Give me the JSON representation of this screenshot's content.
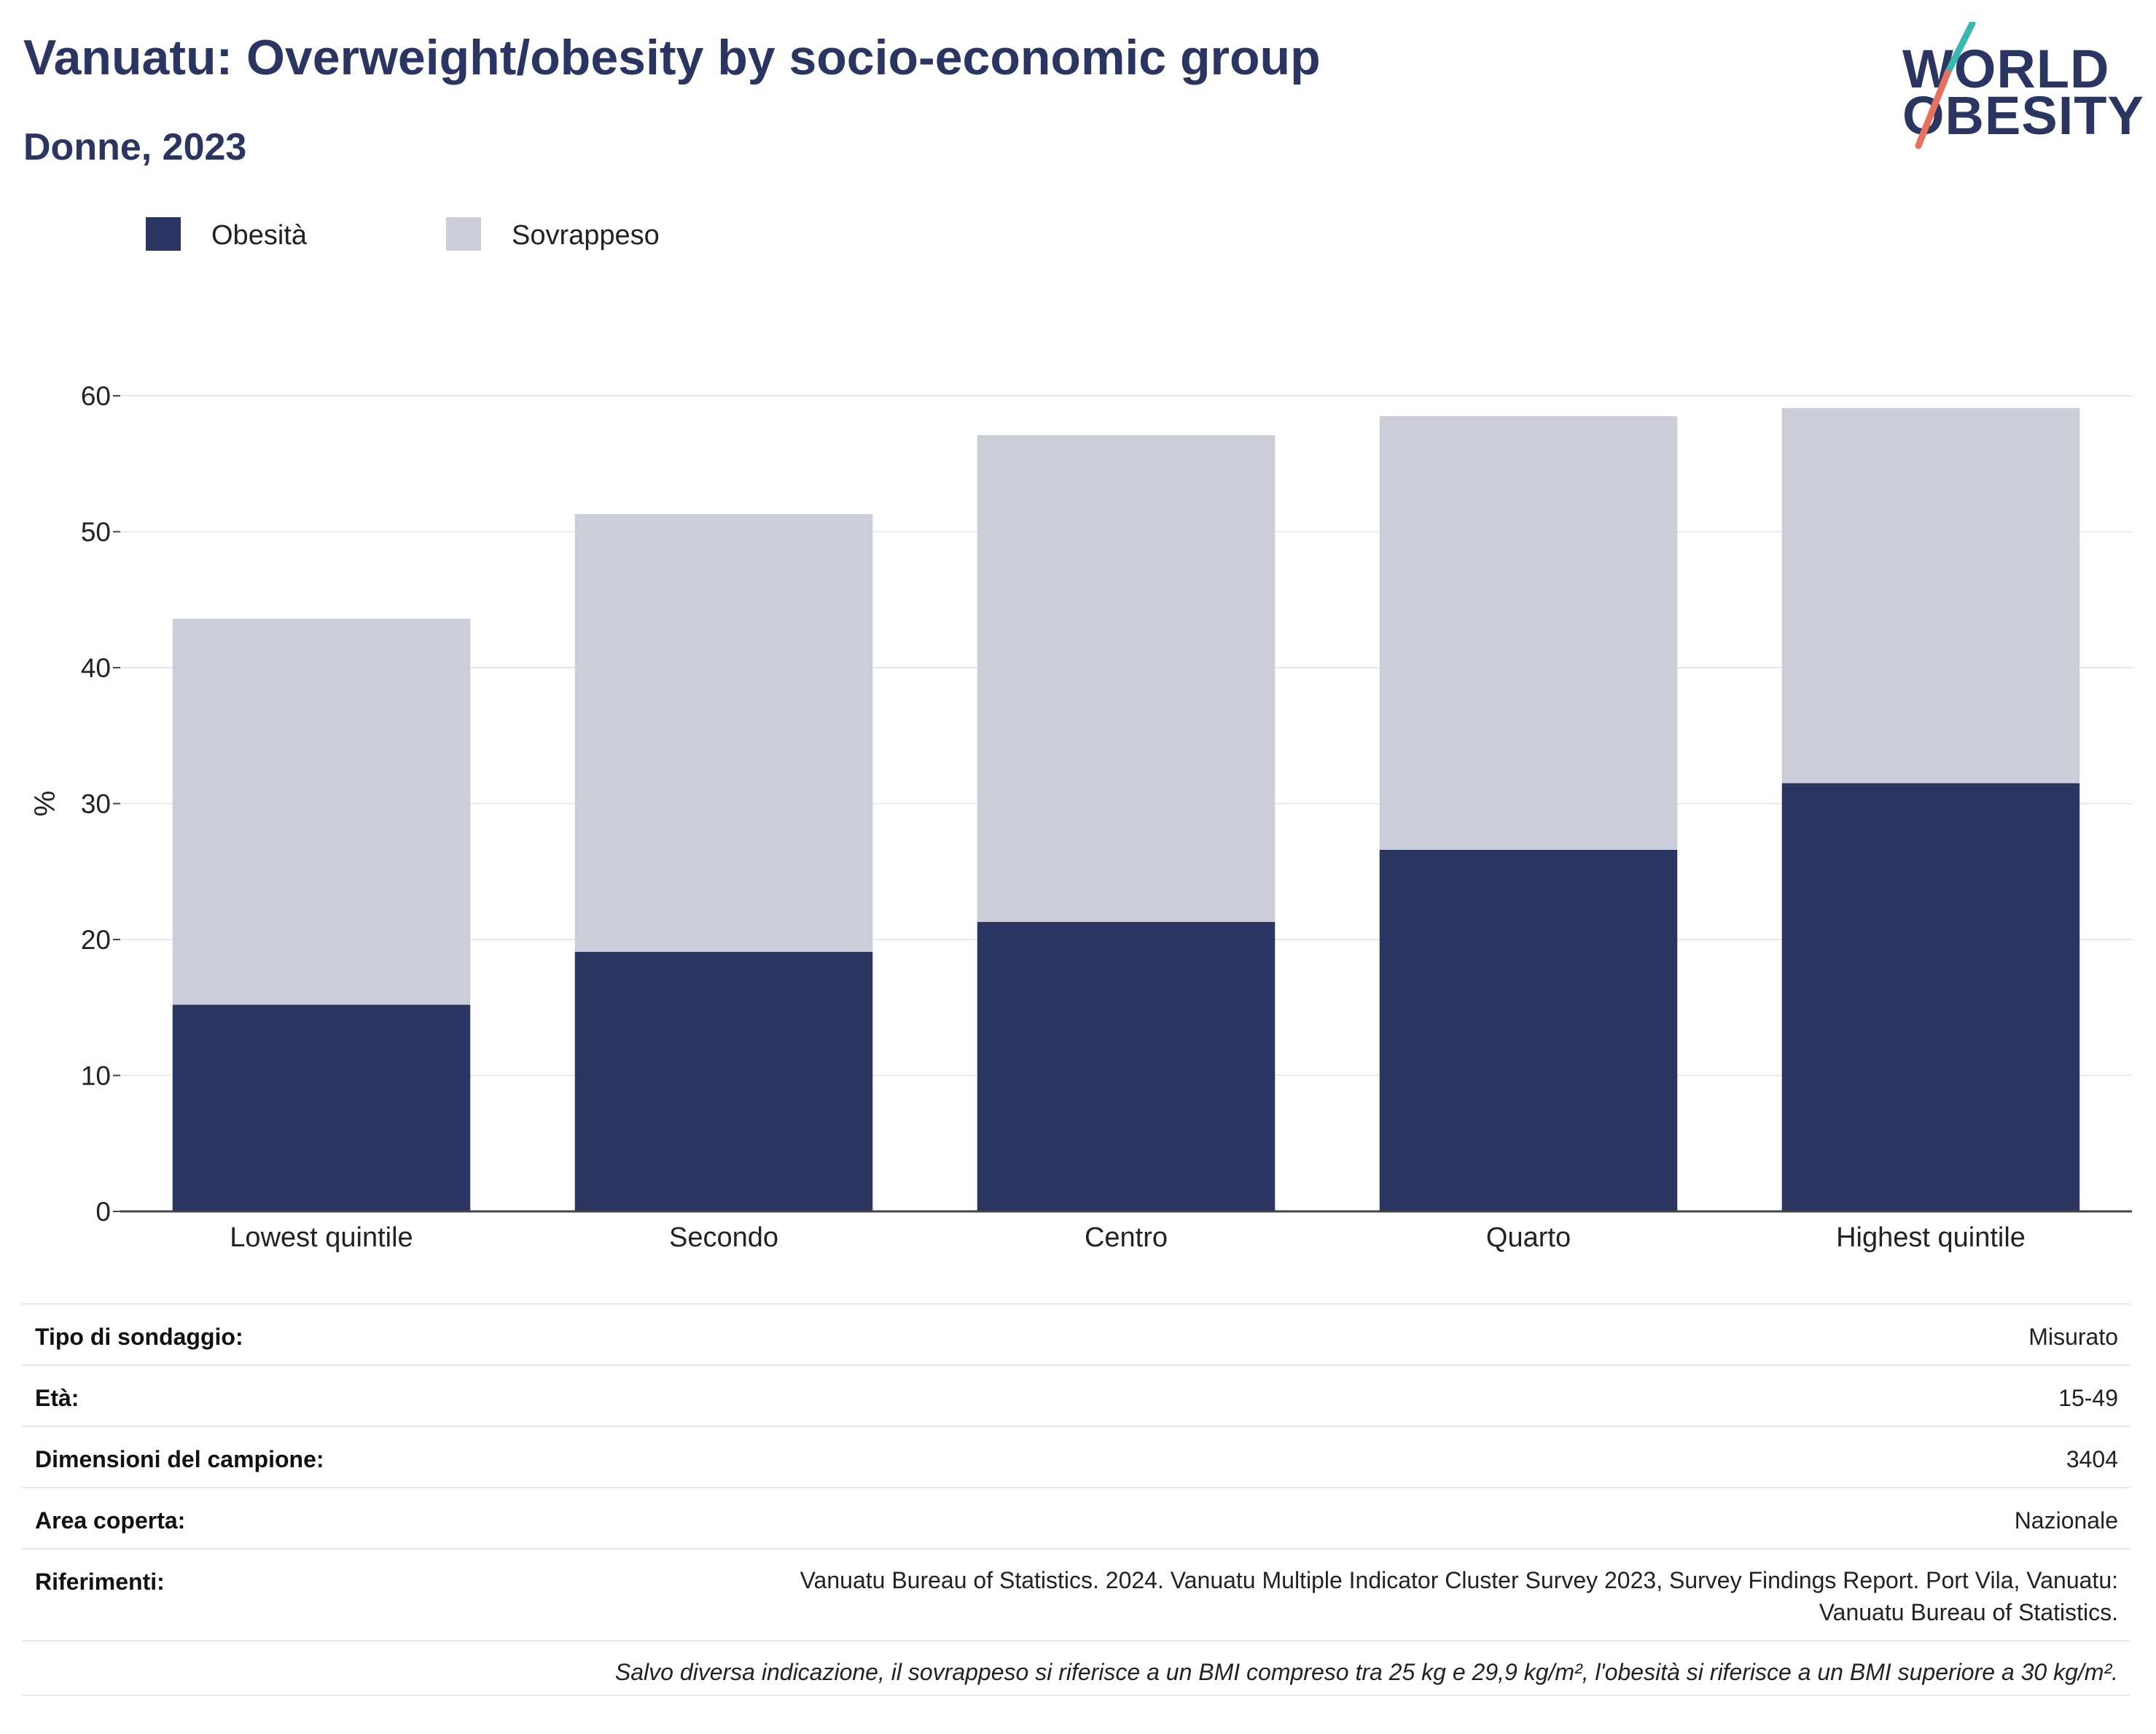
{
  "header": {
    "title": "Vanuatu: Overweight/obesity by socio-economic group",
    "subtitle": "Donne, 2023"
  },
  "logo": {
    "line1": "WORLD",
    "line2": "OBESITY",
    "colors": {
      "text": "#2b3562",
      "slash_top": "#3ab8b0",
      "slash_bottom": "#e8705e"
    }
  },
  "legend": {
    "items": [
      {
        "label": "Obesità",
        "color": "#2b3562"
      },
      {
        "label": "Sovrappeso",
        "color": "#cbcdd8"
      }
    ]
  },
  "chart_data": {
    "type": "bar",
    "stacked": true,
    "categories": [
      "Lowest quintile",
      "Secondo",
      "Centro",
      "Quarto",
      "Highest quintile"
    ],
    "series": [
      {
        "name": "Obesità",
        "color": "#2b3562",
        "values": [
          15.2,
          19.1,
          21.3,
          26.6,
          31.5
        ]
      },
      {
        "name": "Sovrappeso",
        "color": "#cbcdd8",
        "values": [
          28.4,
          32.2,
          35.8,
          31.9,
          27.6
        ]
      }
    ],
    "ylabel": "%",
    "xlabel": "",
    "ylim": [
      0,
      60
    ],
    "yticks": [
      0,
      10,
      20,
      30,
      40,
      50,
      60
    ],
    "grid": true,
    "legend_position": "top-left"
  },
  "info": {
    "rows": [
      {
        "label": "Tipo di sondaggio:",
        "value": "Misurato"
      },
      {
        "label": "Età:",
        "value": "15-49"
      },
      {
        "label": "Dimensioni del campione:",
        "value": "3404"
      },
      {
        "label": "Area coperta:",
        "value": "Nazionale"
      },
      {
        "label": "Riferimenti:",
        "value_line1": "Vanuatu Bureau of Statistics. 2024. Vanuatu Multiple Indicator Cluster Survey 2023, Survey Findings Report. Port Vila, Vanuatu:",
        "value_line2": "Vanuatu Bureau of Statistics."
      }
    ],
    "note": "Salvo diversa indicazione, il sovrappeso si riferisce a un BMI compreso tra 25 kg e 29,9 kg/m², l'obesità si riferisce a un BMI superiore a 30 kg/m²."
  }
}
